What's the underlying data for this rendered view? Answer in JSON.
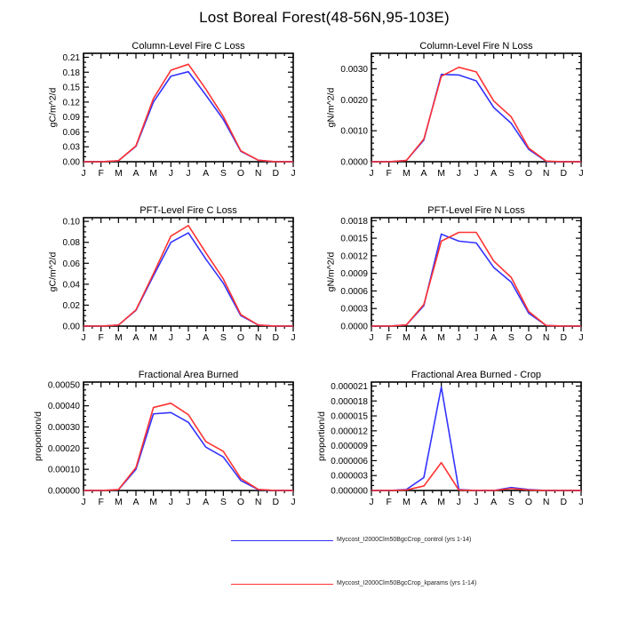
{
  "title": "Lost Boreal Forest(48-56N,95-103E)",
  "months": [
    "J",
    "F",
    "M",
    "A",
    "M",
    "J",
    "J",
    "A",
    "S",
    "O",
    "N",
    "D",
    "J"
  ],
  "colors": {
    "control": "#3333ff",
    "kparams": "#ff3333",
    "axis": "#000000"
  },
  "legend": [
    {
      "label": "Myccost_I2000Clm50BgcCrop_control (yrs 1-14)",
      "color": "#3333ff"
    },
    {
      "label": "Myccost_I2000Clm50BgcCrop_kparams (yrs 1-14)",
      "color": "#ff3333"
    }
  ],
  "chart_data": [
    {
      "type": "line",
      "title": "Column-Level Fire C Loss",
      "ylabel": "gC/m^2/d",
      "categories": [
        "J",
        "F",
        "M",
        "A",
        "M",
        "J",
        "J",
        "A",
        "S",
        "O",
        "N",
        "D",
        "J"
      ],
      "ytick_labels": [
        "0.00",
        "0.03",
        "0.06",
        "0.09",
        "0.12",
        "0.15",
        "0.18",
        "0.21"
      ],
      "ylim": [
        0,
        0.218
      ],
      "y_minors_per_gap": 2,
      "grid": false,
      "legend_position": "none",
      "series": [
        {
          "name": "control",
          "color": "#3333ff",
          "values": [
            0,
            0,
            0.002,
            0.031,
            0.12,
            0.172,
            0.181,
            0.134,
            0.085,
            0.021,
            0.003,
            0,
            0
          ]
        },
        {
          "name": "kparams",
          "color": "#ff3333",
          "values": [
            0,
            0,
            0.002,
            0.032,
            0.127,
            0.184,
            0.196,
            0.146,
            0.091,
            0.022,
            0.003,
            0,
            0
          ]
        }
      ]
    },
    {
      "type": "line",
      "title": "Column-Level Fire N Loss",
      "ylabel": "gN/m^2/d",
      "categories": [
        "J",
        "F",
        "M",
        "A",
        "M",
        "J",
        "J",
        "A",
        "S",
        "O",
        "N",
        "D",
        "J"
      ],
      "ytick_labels": [
        "0.0000",
        "0.0010",
        "0.0020",
        "0.0030"
      ],
      "ylim": [
        0,
        0.0035
      ],
      "y_minors_per_gap": 4,
      "grid": false,
      "legend_position": "none",
      "series": [
        {
          "name": "control",
          "color": "#3333ff",
          "values": [
            0,
            0,
            4e-05,
            0.0007,
            0.00282,
            0.0028,
            0.00261,
            0.00175,
            0.00124,
            0.0004,
            1e-05,
            0,
            0
          ]
        },
        {
          "name": "kparams",
          "color": "#ff3333",
          "values": [
            0,
            0,
            4e-05,
            0.00073,
            0.00276,
            0.00305,
            0.0029,
            0.00196,
            0.00145,
            0.00044,
            2e-05,
            0,
            0
          ]
        }
      ]
    },
    {
      "type": "line",
      "title": "PFT-Level Fire C Loss",
      "ylabel": "gC/m^2/d",
      "categories": [
        "J",
        "F",
        "M",
        "A",
        "M",
        "J",
        "J",
        "A",
        "S",
        "O",
        "N",
        "D",
        "J"
      ],
      "ytick_labels": [
        "0.00",
        "0.02",
        "0.04",
        "0.06",
        "0.08",
        "0.10"
      ],
      "ylim": [
        0,
        0.1035
      ],
      "y_minors_per_gap": 3,
      "grid": false,
      "legend_position": "none",
      "series": [
        {
          "name": "control",
          "color": "#3333ff",
          "values": [
            0,
            0,
            0.001,
            0.015,
            0.048,
            0.08,
            0.089,
            0.064,
            0.041,
            0.01,
            0.001,
            0,
            0
          ]
        },
        {
          "name": "kparams",
          "color": "#ff3333",
          "values": [
            0,
            0,
            0.001,
            0.0155,
            0.05,
            0.086,
            0.096,
            0.07,
            0.045,
            0.011,
            0.001,
            0,
            0
          ]
        }
      ]
    },
    {
      "type": "line",
      "title": "PFT-Level Fire N Loss",
      "ylabel": "gN/m^2/d",
      "categories": [
        "J",
        "F",
        "M",
        "A",
        "M",
        "J",
        "J",
        "A",
        "S",
        "O",
        "N",
        "D",
        "J"
      ],
      "ytick_labels": [
        "0.0000",
        "0.0003",
        "0.0006",
        "0.0009",
        "0.0012",
        "0.0015",
        "0.0018"
      ],
      "ylim": [
        0,
        0.00185
      ],
      "y_minors_per_gap": 2,
      "grid": false,
      "legend_position": "none",
      "series": [
        {
          "name": "control",
          "color": "#3333ff",
          "values": [
            0,
            0,
            2e-05,
            0.00035,
            0.00157,
            0.00145,
            0.00142,
            0.001,
            0.00075,
            0.00022,
            1e-05,
            0,
            0
          ]
        },
        {
          "name": "kparams",
          "color": "#ff3333",
          "values": [
            0,
            0,
            2e-05,
            0.00037,
            0.00145,
            0.0016,
            0.0016,
            0.00111,
            0.00083,
            0.00025,
            1e-05,
            0,
            0
          ]
        }
      ]
    },
    {
      "type": "line",
      "title": "Fractional Area Burned",
      "ylabel": "proportion/d",
      "categories": [
        "J",
        "F",
        "M",
        "A",
        "M",
        "J",
        "J",
        "A",
        "S",
        "O",
        "N",
        "D",
        "J"
      ],
      "ytick_labels": [
        "0.00000",
        "0.00010",
        "0.00020",
        "0.00030",
        "0.00040",
        "0.00050"
      ],
      "ylim": [
        0,
        0.000512
      ],
      "y_minors_per_gap": 3,
      "grid": false,
      "legend_position": "none",
      "series": [
        {
          "name": "control",
          "color": "#3333ff",
          "values": [
            0,
            0,
            4e-06,
            0.0001,
            0.000362,
            0.000368,
            0.000322,
            0.000205,
            0.000158,
            4.7e-05,
            4e-06,
            0,
            0
          ]
        },
        {
          "name": "kparams",
          "color": "#ff3333",
          "values": [
            0,
            0,
            4e-06,
            0.000108,
            0.000392,
            0.000412,
            0.000358,
            0.000231,
            0.000185,
            5.7e-05,
            5e-06,
            0,
            0
          ]
        }
      ]
    },
    {
      "type": "line",
      "title": "Fractional Area Burned - Crop",
      "ylabel": "proportion/d",
      "categories": [
        "J",
        "F",
        "M",
        "A",
        "M",
        "J",
        "J",
        "A",
        "S",
        "O",
        "N",
        "D",
        "J"
      ],
      "ytick_labels": [
        "0.000000",
        "0.000003",
        "0.000006",
        "0.000009",
        "0.000012",
        "0.000015",
        "0.000018",
        "0.000021"
      ],
      "ylim": [
        0,
        2.18e-05
      ],
      "y_minors_per_gap": 2,
      "grid": false,
      "legend_position": "none",
      "series": [
        {
          "name": "control",
          "color": "#3333ff",
          "values": [
            0,
            0,
            2e-07,
            2.6e-06,
            2.08e-05,
            2e-07,
            0,
            0,
            6e-07,
            2e-07,
            0,
            0,
            0
          ]
        },
        {
          "name": "kparams",
          "color": "#ff3333",
          "values": [
            0,
            0,
            1e-07,
            9e-07,
            5.6e-06,
            1e-07,
            0,
            0,
            4e-07,
            1e-07,
            0,
            0,
            0
          ]
        }
      ]
    }
  ]
}
